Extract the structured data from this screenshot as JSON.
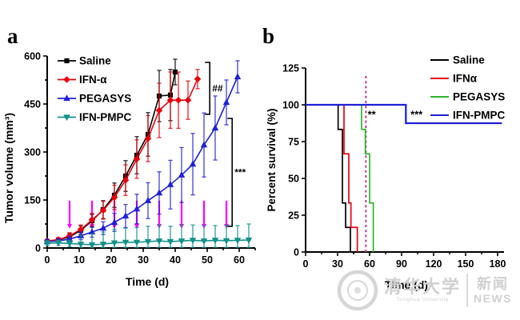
{
  "page": {
    "panel_a_label": "a",
    "panel_b_label": "b"
  },
  "watermark": {
    "cjk": "清华大学",
    "sub": "Tsinghua University",
    "news_cjk": "新闻",
    "news_latin": "NEWS"
  },
  "colors": {
    "axis": "#000000",
    "injection_arrow": "#ff00ff",
    "treatment_end_line": "#c2368f",
    "background": "#ffffff"
  },
  "chart_data": [
    {
      "id": "panel-a-tumor-volume",
      "type": "line",
      "title": "",
      "xlabel": "Time (d)",
      "ylabel": "Tumor volume (mm³)",
      "xlim": [
        0,
        65
      ],
      "ylim": [
        0,
        600
      ],
      "xticks": [
        0,
        10,
        20,
        30,
        40,
        50,
        60
      ],
      "yticks": [
        0,
        150,
        300,
        450,
        600
      ],
      "x_minor_step": 5,
      "y_minor_step": 75,
      "grid": false,
      "legend_position": "top-left",
      "series": [
        {
          "name": "Saline",
          "color": "#000000",
          "marker": "square",
          "x": [
            0,
            3.5,
            7,
            10.5,
            14,
            17.5,
            21,
            24.5,
            28,
            31.5,
            35,
            38.5,
            40
          ],
          "y": [
            20,
            25,
            35,
            55,
            85,
            120,
            165,
            225,
            290,
            355,
            475,
            478,
            550
          ],
          "err": [
            6,
            6,
            10,
            14,
            20,
            28,
            38,
            48,
            58,
            68,
            80,
            80,
            40
          ]
        },
        {
          "name": "IFN-α",
          "color": "#e8000d",
          "marker": "diamond",
          "x": [
            0,
            3.5,
            7,
            10.5,
            14,
            17.5,
            21,
            24.5,
            28,
            31.5,
            35,
            38.5,
            41,
            44,
            47
          ],
          "y": [
            22,
            26,
            38,
            58,
            88,
            118,
            158,
            212,
            278,
            342,
            430,
            462,
            462,
            462,
            528
          ],
          "err": [
            6,
            6,
            10,
            14,
            20,
            28,
            38,
            48,
            60,
            72,
            85,
            88,
            88,
            60,
            30
          ]
        },
        {
          "name": "PEGASYS",
          "color": "#2020d8",
          "marker": "triangle-up",
          "x": [
            0,
            3.5,
            7,
            10.5,
            14,
            17.5,
            21,
            24.5,
            28,
            31.5,
            35,
            38.5,
            42,
            45.5,
            49,
            52.5,
            56,
            59.5
          ],
          "y": [
            20,
            22,
            28,
            38,
            50,
            62,
            80,
            100,
            122,
            148,
            172,
            198,
            228,
            262,
            322,
            375,
            455,
            535
          ],
          "err": [
            6,
            6,
            9,
            12,
            16,
            20,
            28,
            36,
            46,
            56,
            66,
            76,
            86,
            96,
            100,
            100,
            70,
            50
          ]
        },
        {
          "name": "IFN-PMPC",
          "color": "#12918a",
          "marker": "triangle-down",
          "x": [
            0,
            3.5,
            7,
            10.5,
            14,
            17.5,
            21,
            24.5,
            28,
            31.5,
            35,
            38.5,
            42,
            45.5,
            49,
            52.5,
            56,
            59.5,
            63
          ],
          "y": [
            15,
            16,
            14,
            12,
            10,
            12,
            16,
            18,
            18,
            20,
            22,
            20,
            22,
            24,
            22,
            24,
            23,
            24,
            25
          ],
          "err": [
            8,
            8,
            10,
            28,
            34,
            38,
            42,
            44,
            46,
            48,
            50,
            48,
            50,
            48,
            48,
            46,
            48,
            46,
            50
          ]
        }
      ],
      "injection_arrows": {
        "color": "#ff00ff",
        "days": [
          7,
          14,
          21,
          28,
          35,
          42,
          49,
          56
        ],
        "from_value": 148,
        "to_value": 60
      },
      "significance_brackets": [
        {
          "label": "##",
          "at_day": 50.8,
          "from_value": 580,
          "to_value": 418
        },
        {
          "label": "***",
          "at_day": 57.8,
          "from_value": 405,
          "to_value": 68
        }
      ]
    },
    {
      "id": "panel-b-percent-survival",
      "type": "step",
      "title": "",
      "xlabel": "Time (d)",
      "ylabel": "Percent survival (%)",
      "xlim": [
        0,
        186
      ],
      "ylim": [
        0,
        125
      ],
      "xticks": [
        0,
        30,
        60,
        90,
        120,
        150,
        180
      ],
      "yticks": [
        0,
        25,
        50,
        75,
        100,
        125
      ],
      "x_minor_step": 15,
      "grid": false,
      "legend_position": "top-right",
      "series": [
        {
          "name": "Saline",
          "color": "#000000",
          "start_percent": 100,
          "drops": [
            [
              30.5,
              83.3
            ],
            [
              34.5,
              33.3
            ],
            [
              37.5,
              16.7
            ],
            [
              42,
              0
            ]
          ]
        },
        {
          "name": "IFNα",
          "color": "#e8000d",
          "start_percent": 100,
          "drops": [
            [
              36,
              66.7
            ],
            [
              40.5,
              33.3
            ],
            [
              42.5,
              16.7
            ],
            [
              48.5,
              0
            ]
          ]
        },
        {
          "name": "PEGASYS",
          "color": "#2db82d",
          "start_percent": 100,
          "drops": [
            [
              52.5,
              83.3
            ],
            [
              56,
              66.7
            ],
            [
              60,
              33.3
            ],
            [
              63.5,
              0
            ]
          ]
        },
        {
          "name": "IFN-PMPC",
          "color": "#2020d8",
          "start_percent": 100,
          "drops": [
            [
              94,
              87.5
            ]
          ],
          "extend_to_day": 184
        }
      ],
      "treatment_end_line": {
        "x_day": 56.5,
        "color": "#c2368f",
        "style": "dashed"
      },
      "annotations": [
        {
          "text": "**",
          "x_day": 62,
          "y_percent": 91
        },
        {
          "text": "***",
          "x_day": 104,
          "y_percent": 91
        }
      ]
    }
  ]
}
